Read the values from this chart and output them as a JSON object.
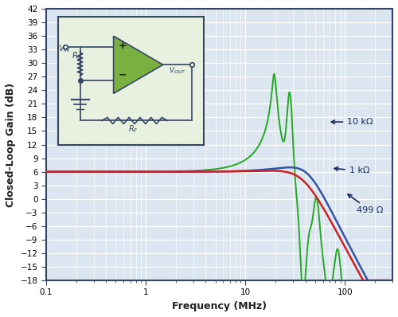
{
  "xlabel": "Frequency (MHz)",
  "ylabel": "Closed-Loop Gain (dB)",
  "xlim": [
    0.1,
    300
  ],
  "ylim": [
    -18,
    42
  ],
  "yticks": [
    -18,
    -15,
    -12,
    -9,
    -6,
    -3,
    0,
    3,
    6,
    9,
    12,
    15,
    18,
    21,
    24,
    27,
    30,
    33,
    36,
    39,
    42
  ],
  "bg_color": "#dce6f0",
  "grid_color": "#ffffff",
  "line_blue_color": "#3355aa",
  "line_red_color": "#cc2222",
  "line_green_color": "#22aa22",
  "label_10k": "10 kΩ",
  "label_1k": "1 kΩ",
  "label_499": "499 Ω",
  "schematic_bg": "#e8f0e0",
  "schematic_border": "#334466",
  "opamp_color": "#7ab040"
}
